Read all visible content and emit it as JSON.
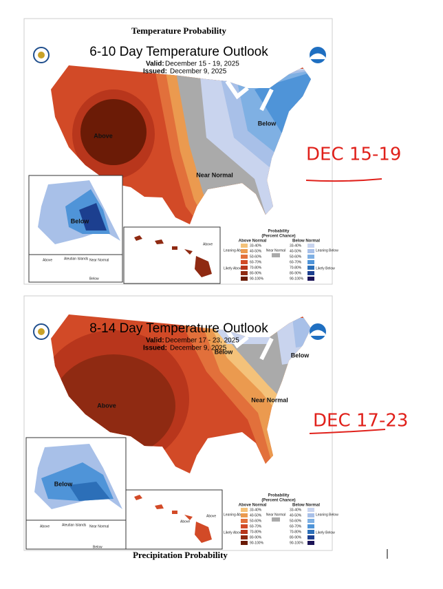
{
  "header": {
    "title": "Temperature Probability"
  },
  "outlooks": [
    {
      "title": "6-10 Day Temperature Outlook",
      "valid_label": "Valid:",
      "valid": "December 15 - 19, 2025",
      "issued_label": "Issued:",
      "issued": "December 9, 2025",
      "map_labels": {
        "above": "Above",
        "below": "Below",
        "near": "Near Normal",
        "alaska": "Below",
        "hawaii": "Above",
        "aleutian_above": "Above",
        "aleutian": "Aleutian Islands",
        "aleutian_near": "Near Normal",
        "aleutian_below": "Below"
      },
      "annotation": "DEC 15-19"
    },
    {
      "title": "8-14 Day Temperature Outlook",
      "valid_label": "Valid:",
      "valid": "December 17 - 23, 2025",
      "issued_label": "Issued:",
      "issued": "December 9, 2025",
      "map_labels": {
        "above": "Above",
        "below": "Below",
        "below2": "Below",
        "near": "Near Normal",
        "alaska": "Below",
        "hawaii": "Above",
        "hawaii2": "Above",
        "aleutian_above": "Above",
        "aleutian": "Aleutian Islands",
        "aleutian_near": "Near Normal",
        "aleutian_below": "Below"
      },
      "annotation": "DEC 17-23"
    }
  ],
  "legend": {
    "title": "Probability",
    "subtitle": "(Percent Chance)",
    "above_normal": "Above Normal",
    "near_normal": "Near Normal",
    "below_normal": "Below Normal",
    "leaning_above": "Leaning Above",
    "likely_above": "Likely Above",
    "leaning_below": "Leaning Below",
    "likely_below": "Likely Below",
    "above_ranges": [
      "33-40%",
      "40-50%",
      "50-60%",
      "60-70%",
      "70-80%",
      "80-90%",
      "90-100%"
    ],
    "below_ranges": [
      "33-40%",
      "40-50%",
      "50-60%",
      "60-70%",
      "70-80%",
      "80-90%",
      "90-100%"
    ]
  },
  "footer": {
    "next_title": "Precipitation Probability"
  }
}
